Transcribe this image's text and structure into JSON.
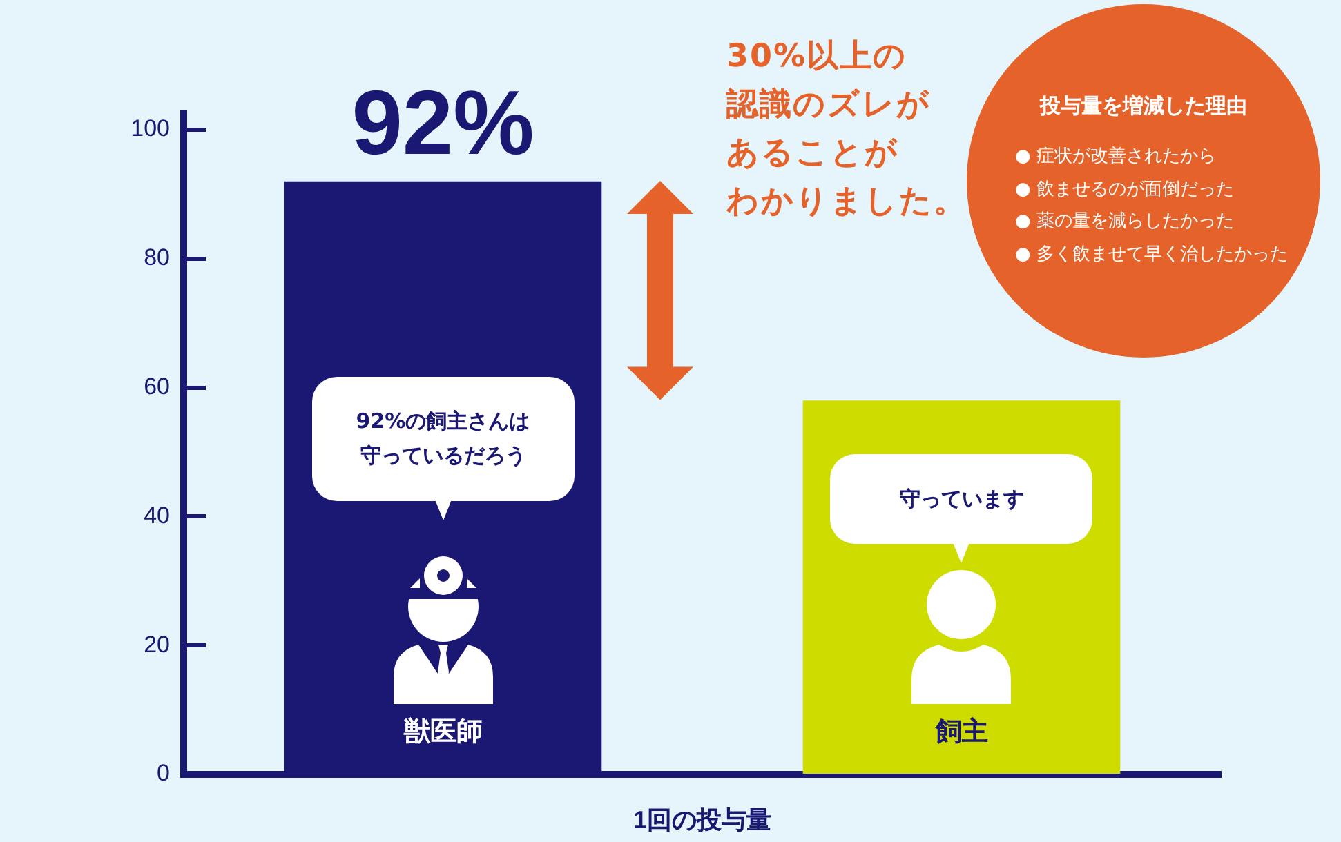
{
  "chart_data": {
    "type": "bar",
    "categories": [
      "獣医師",
      "飼主"
    ],
    "values": [
      92,
      58
    ],
    "colors": [
      "#1a1872",
      "#cfdc00"
    ],
    "value_labels": [
      "92%",
      null
    ],
    "xlabel": "1回の投与量",
    "ylim": [
      0,
      103
    ],
    "yticks": [
      0,
      20,
      40,
      60,
      80,
      100
    ],
    "annotations": [
      "30%以上の認識のズレがあることがわかりました。",
      "92%の飼主さんは守っているだろう",
      "守っています",
      "投与量を増減した理由",
      "● 症状が改善されたから",
      "● 飲ませるのが面倒だった",
      "● 薬の量を減らしたかった",
      "● 多く飲ませて早く治したかった"
    ]
  }
}
